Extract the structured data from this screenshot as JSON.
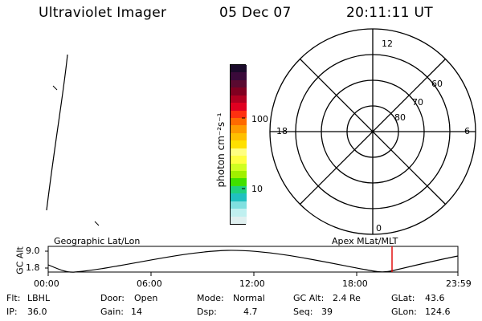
{
  "header": {
    "title": "Ultraviolet Imager",
    "date": "05 Dec 07",
    "time": "20:11:11 UT"
  },
  "colorbar": {
    "unit_label": "photon cm⁻²s⁻¹",
    "ticks": [
      "100",
      "10"
    ],
    "colors": [
      "#1a0a2a",
      "#3a0a3a",
      "#5a0a30",
      "#800020",
      "#b00020",
      "#e00020",
      "#ff3010",
      "#ff6a00",
      "#ff9a00",
      "#ffc000",
      "#ffe000",
      "#ffff80",
      "#ffff40",
      "#d0ff20",
      "#a0f000",
      "#40e000",
      "#20d080",
      "#20c0c0",
      "#80e0e0",
      "#c0f0f0",
      "#e0f0f0"
    ]
  },
  "polar": {
    "mlt_labels": {
      "top": "12",
      "left": "18",
      "right": "6",
      "bottom": "0"
    },
    "lat_labels": [
      "60",
      "70",
      "80"
    ]
  },
  "timeline": {
    "left_axis_label": "GC Alt",
    "y_ticks": [
      "9.0",
      "1.8"
    ],
    "left_title": "Geographic Lat/Lon",
    "right_title": "Apex MLat/MLT",
    "x_ticks": [
      "00:00",
      "06:00",
      "12:00",
      "18:00",
      "23:59"
    ]
  },
  "status": {
    "col1": [
      {
        "key": "Flt:",
        "value": "LBHL"
      },
      {
        "key": "IP:",
        "value": "36.0"
      }
    ],
    "col2": [
      {
        "key": "Door:",
        "value": "Open"
      },
      {
        "key": "Gain:",
        "value": "14"
      }
    ],
    "col3": [
      {
        "key": "Mode:",
        "value": "Normal"
      },
      {
        "key": "Dsp:",
        "value": "4.7"
      }
    ],
    "col4": [
      {
        "key": "GC Alt:",
        "value": "2.4 Re"
      },
      {
        "key": "Seq:",
        "value": "39"
      }
    ],
    "col5": [
      {
        "key": "GLat:",
        "value": "43.6"
      },
      {
        "key": "GLon:",
        "value": "124.6"
      }
    ]
  },
  "colors": {
    "marker": "#e00000",
    "line": "#000000"
  }
}
